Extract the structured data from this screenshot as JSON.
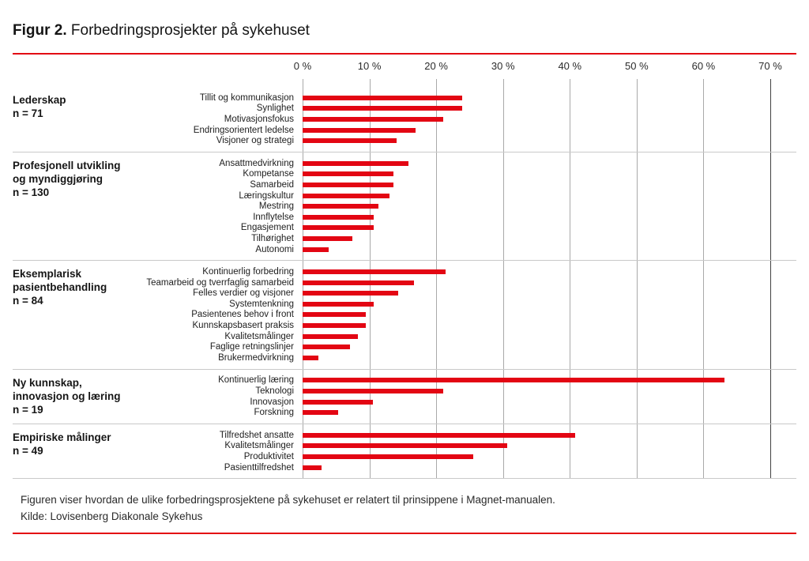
{
  "figure": {
    "title_prefix": "Figur 2.",
    "title_text": "Forbedringsprosjekter på sykehuset",
    "caption": "Figuren viser hvordan de ulike forbedringsprosjektene på sykehuset er relatert til prinsippene i Magnet-manualen.",
    "source": "Kilde: Lovisenberg Diakonale Sykehus"
  },
  "colors": {
    "bar_red": "#e30613",
    "rule_red": "#e30613",
    "gridline": "#a9a9a9",
    "gridline_last": "#414141",
    "separator": "#c9c9c9"
  },
  "chart_data": {
    "type": "bar",
    "orientation": "horizontal",
    "unit": "%",
    "xlim": [
      0,
      70
    ],
    "x_ticks": [
      "0 %",
      "10 %",
      "20 %",
      "30 %",
      "40 %",
      "50 %",
      "60 %",
      "70 %"
    ],
    "grid": true,
    "groups": [
      {
        "label_lines": [
          "Lederskap"
        ],
        "n_label": "n = 71",
        "items": [
          {
            "label": "Tillit og kommunikasjon",
            "value": 23.9
          },
          {
            "label": "Synlighet",
            "value": 23.9
          },
          {
            "label": "Motivasjonsfokus",
            "value": 21.1
          },
          {
            "label": "Endringsorientert ledelse",
            "value": 16.9
          },
          {
            "label": "Visjoner og strategi",
            "value": 14.1
          }
        ]
      },
      {
        "label_lines": [
          "Profesjonell utvikling",
          "og myndiggjøring"
        ],
        "n_label": "n = 130",
        "items": [
          {
            "label": "Ansattmedvirkning",
            "value": 15.8
          },
          {
            "label": "Kompetanse",
            "value": 13.6
          },
          {
            "label": "Samarbeid",
            "value": 13.6
          },
          {
            "label": "Læringskultur",
            "value": 13.0
          },
          {
            "label": "Mestring",
            "value": 11.3
          },
          {
            "label": "Innflytelse",
            "value": 10.7
          },
          {
            "label": "Engasjement",
            "value": 10.7
          },
          {
            "label": "Tilhørighet",
            "value": 7.5
          },
          {
            "label": "Autonomi",
            "value": 3.9
          }
        ]
      },
      {
        "label_lines": [
          "Eksemplarisk",
          "pasientbehandling"
        ],
        "n_label": "n = 84",
        "items": [
          {
            "label": "Kontinuerlig forbedring",
            "value": 21.4
          },
          {
            "label": "Teamarbeid og tverrfaglig samarbeid",
            "value": 16.7
          },
          {
            "label": "Felles verdier og visjoner",
            "value": 14.3
          },
          {
            "label": "Systemtenkning",
            "value": 10.7
          },
          {
            "label": "Pasientenes behov i front",
            "value": 9.5
          },
          {
            "label": "Kunnskapsbasert praksis",
            "value": 9.5
          },
          {
            "label": "Kvalitetsmålinger",
            "value": 8.3
          },
          {
            "label": "Faglige retningslinjer",
            "value": 7.1
          },
          {
            "label": "Brukermedvirkning",
            "value": 2.4
          }
        ]
      },
      {
        "label_lines": [
          "Ny kunnskap,",
          "innovasjon og læring"
        ],
        "n_label": "n = 19",
        "items": [
          {
            "label": "Kontinuerlig læring",
            "value": 63.2
          },
          {
            "label": "Teknologi",
            "value": 21.1
          },
          {
            "label": "Innovasjon",
            "value": 10.5
          },
          {
            "label": "Forskning",
            "value": 5.3
          }
        ]
      },
      {
        "label_lines": [
          "Empiriske målinger"
        ],
        "n_label": "n = 49",
        "items": [
          {
            "label": "Tilfredshet ansatte",
            "value": 40.8
          },
          {
            "label": "Kvalitetsmålinger",
            "value": 30.6
          },
          {
            "label": "Produktivitet",
            "value": 25.5
          },
          {
            "label": "Pasienttilfredshet",
            "value": 2.8
          }
        ]
      }
    ]
  }
}
